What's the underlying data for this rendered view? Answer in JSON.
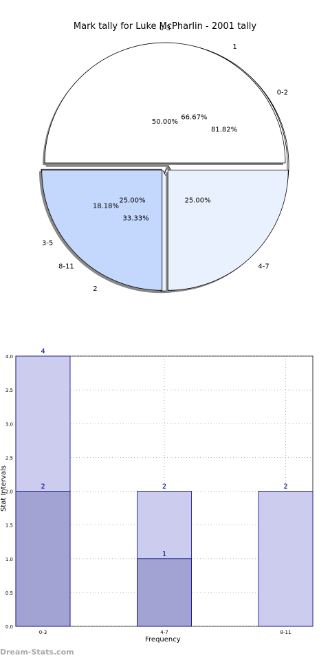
{
  "page": {
    "watermark": "Dream-Stats.com"
  },
  "colors": {
    "pie_light": "#ffffff",
    "pie_mid": "#eaf1fe",
    "pie_dark": "#c4d7fd",
    "bar_light": "#ccccee",
    "bar_dark": "#a3a3d3",
    "bar_edge": "#000080",
    "value_label": "#000080"
  },
  "chart_data": [
    {
      "type": "pie",
      "title": "Mark tally for Luke McPharlin - 2001 tally",
      "rings": [
        {
          "name": "",
          "slices": [
            {
              "label": "0-3",
              "percent": "50.00%",
              "value": 50.0
            },
            {
              "label": "4-7",
              "percent": "25.00%",
              "value": 25.0
            },
            {
              "label": "8-11",
              "percent": "25.00%",
              "value": 25.0
            }
          ]
        },
        {
          "name": "",
          "slices": [
            {
              "label": "1",
              "percent": "66.67%",
              "value": 66.67
            },
            {
              "label": "2",
              "percent": "33.33%",
              "value": 33.33
            }
          ]
        },
        {
          "name": "",
          "slices": [
            {
              "label": "0-2",
              "percent": "81.82%",
              "value": 81.82
            },
            {
              "label": "3-5",
              "percent": "18.18%",
              "value": 18.18
            }
          ]
        }
      ]
    },
    {
      "type": "bar",
      "categories": [
        "0-3",
        "4-7",
        "8-11"
      ],
      "series": [
        {
          "name": "",
          "values": [
            4,
            2,
            2
          ]
        },
        {
          "name": "",
          "values": [
            2,
            1,
            0
          ]
        }
      ],
      "value_labels": [
        {
          "category": "0-3",
          "text": "4"
        },
        {
          "category": "0-3",
          "text": "2"
        },
        {
          "category": "4-7",
          "text": "2"
        },
        {
          "category": "4-7",
          "text": "1"
        },
        {
          "category": "8-11",
          "text": "2"
        }
      ],
      "xlabel": "Frequency",
      "ylabel": "Stat Intervals",
      "ylim": [
        0,
        4
      ],
      "yticks": [
        "0.0",
        "0.5",
        "1.0",
        "1.5",
        "2.0",
        "2.5",
        "3.0",
        "3.5",
        "4.0"
      ],
      "grid": true
    }
  ]
}
